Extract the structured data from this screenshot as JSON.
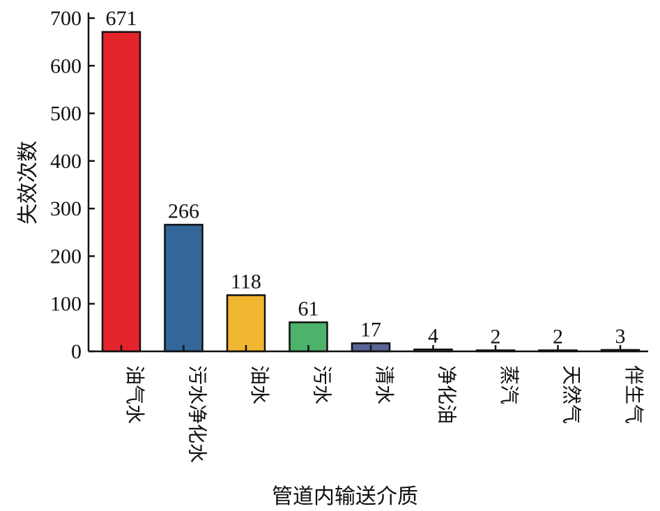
{
  "chart_data": {
    "type": "bar",
    "xlabel": "管道内输送介质",
    "ylabel": "失效次数",
    "ylim": [
      0,
      700
    ],
    "yticks": [
      0,
      100,
      200,
      300,
      400,
      500,
      600,
      700
    ],
    "grid": false,
    "categories": [
      "油气水",
      "污水净化水",
      "油水",
      "污水",
      "清水",
      "净化油",
      "蒸汽",
      "天然气",
      "伴生气"
    ],
    "values": [
      671,
      266,
      118,
      61,
      17,
      4,
      2,
      2,
      3
    ],
    "colors": [
      "#e3242b",
      "#336699",
      "#f2b731",
      "#4db26a",
      "#5a6496",
      "#e8e8e8",
      "#e8e8e8",
      "#e8e8e8",
      "#e8e8e8"
    ]
  }
}
